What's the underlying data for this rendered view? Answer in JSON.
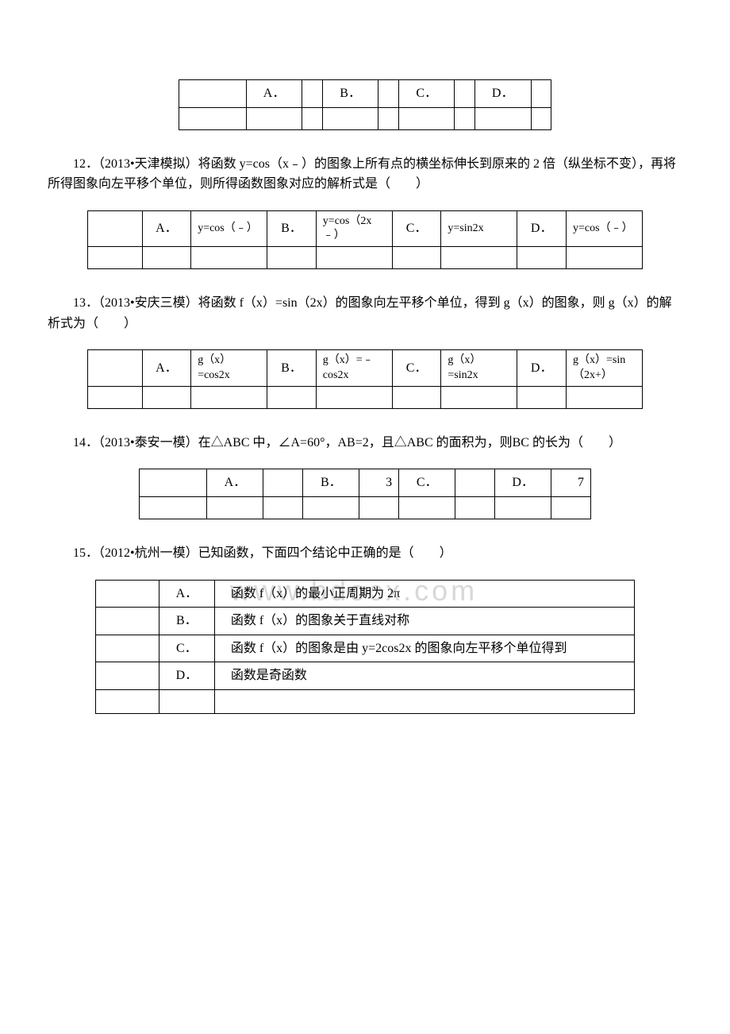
{
  "watermark": "www.bdocx.com",
  "q11": {
    "opts": {
      "a": "A．",
      "b": "B．",
      "c": "C．",
      "d": "D．"
    }
  },
  "q12": {
    "text": "12．（2013•天津模拟）将函数 y=cos（x﹣）的图象上所有点的横坐标伸长到原来的 2 倍（纵坐标不变），再将所得图象向左平移个单位，则所得函数图象对应的解析式是（　　）",
    "opts": {
      "a_label": "A．",
      "a_content": "y=cos（﹣）",
      "b_label": "B．",
      "b_content": "y=cos（2x﹣）",
      "c_label": "C．",
      "c_content": "y=sin2x",
      "d_label": "D．",
      "d_content": "y=cos（﹣）"
    }
  },
  "q13": {
    "text": "13．（2013•安庆三模）将函数 f（x）=sin（2x）的图象向左平移个单位，得到 g（x）的图象，则 g（x）的解析式为（　　）",
    "opts": {
      "a_label": "A．",
      "a_content": "g（x）=cos2x",
      "b_label": "B．",
      "b_content": "g（x）=﹣cos2x",
      "c_label": "C．",
      "c_content": "g（x）=sin2x",
      "d_label": "D．",
      "d_content": "g（x）=sin（2x+）"
    }
  },
  "q14": {
    "text": "14．（2013•泰安一模）在△ABC 中，∠A=60°，AB=2，且△ABC 的面积为，则BC 的长为（　　）",
    "opts": {
      "a_label": "A．",
      "a_content": "",
      "b_label": "B．",
      "b_content": "3",
      "c_label": "C．",
      "c_content": "",
      "d_label": "D．",
      "d_content": "7"
    }
  },
  "q15": {
    "text": "15．（2012•杭州一模）已知函数，下面四个结论中正确的是（　　）",
    "opts": {
      "a_label": "A．",
      "a_content": "函数 f（x）的最小正周期为 2π",
      "b_label": "B．",
      "b_content": "函数 f（x）的图象关于直线对称",
      "c_label": "C．",
      "c_content": "函数 f（x）的图象是由 y=2cos2x 的图象向左平移个单位得到",
      "d_label": "D．",
      "d_content": "函数是奇函数"
    }
  }
}
